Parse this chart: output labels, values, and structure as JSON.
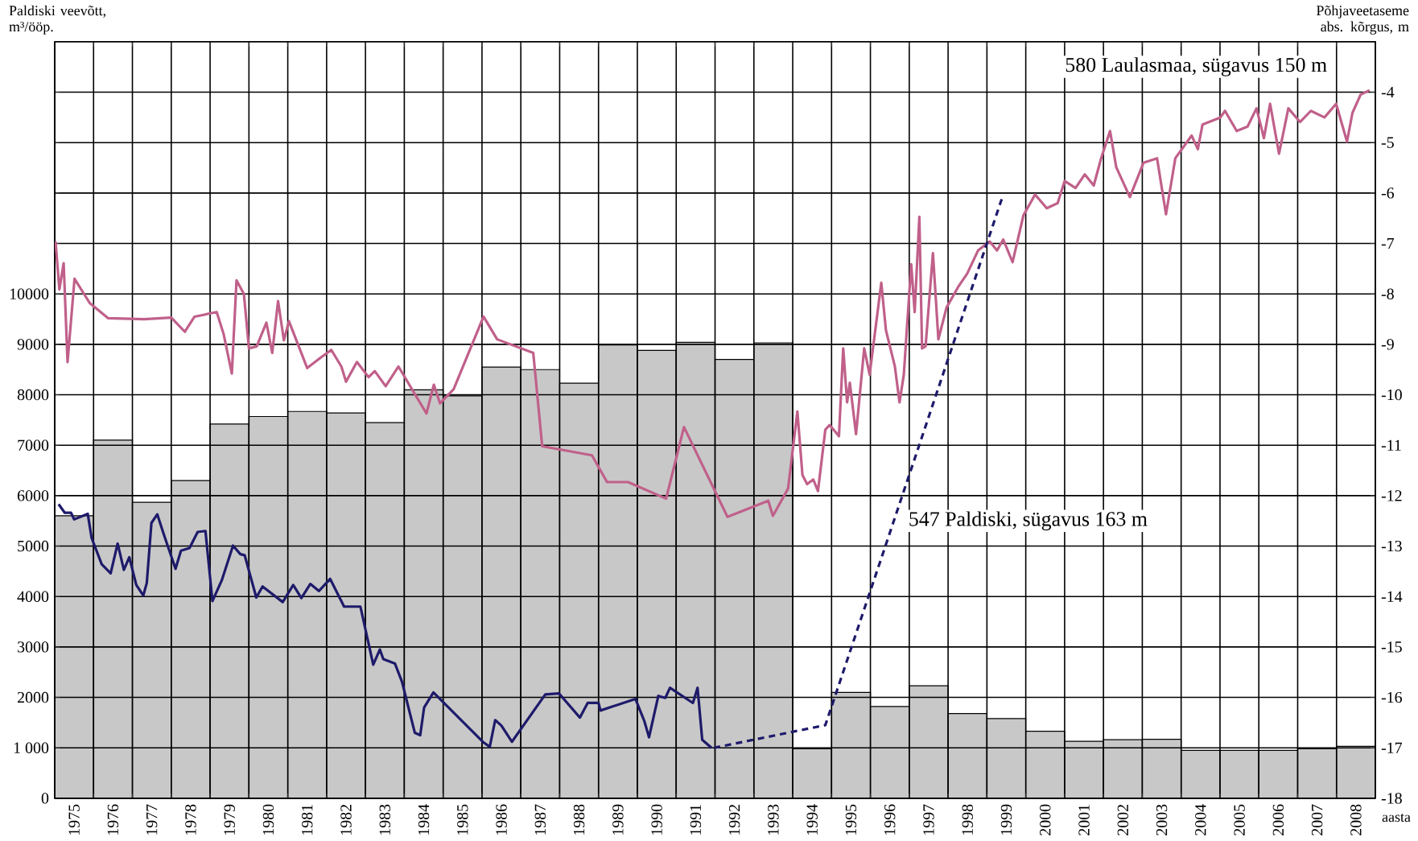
{
  "chart_data": {
    "type": "bar",
    "ylabel": "Paldiski veevõtt, m³/ööp.",
    "y2label": "Põhjaveetaseme abs. kõrgus, m",
    "xlabel": "aasta",
    "annotations": [
      "580  Laulasmaa, sügavus 150 m",
      "547  Paldiski, sügavus 163 m"
    ],
    "xlim": [
      1975,
      2009
    ],
    "xticks": [
      {
        "value": 1975,
        "label": null
      },
      {
        "value": 1976,
        "label": null
      },
      {
        "value": 1977,
        "label": null
      },
      {
        "value": 1978,
        "label": null
      },
      {
        "value": 1979,
        "label": null
      },
      {
        "value": 1980,
        "label": null
      },
      {
        "value": 1981,
        "label": null
      },
      {
        "value": 1982,
        "label": null
      },
      {
        "value": 1983,
        "label": null
      },
      {
        "value": 1984,
        "label": null
      },
      {
        "value": 1985,
        "label": null
      },
      {
        "value": 1986,
        "label": null
      },
      {
        "value": 1987,
        "label": null
      },
      {
        "value": 1988,
        "label": null
      },
      {
        "value": 1989,
        "label": null
      },
      {
        "value": 1990,
        "label": null
      },
      {
        "value": 1991,
        "label": null
      },
      {
        "value": 1992,
        "label": null
      },
      {
        "value": 1993,
        "label": null
      },
      {
        "value": 1994,
        "label": null
      },
      {
        "value": 1995,
        "label": null
      },
      {
        "value": 1996,
        "label": null
      },
      {
        "value": 1997,
        "label": null
      },
      {
        "value": 1998,
        "label": null
      },
      {
        "value": 1999,
        "label": null
      },
      {
        "value": 2000,
        "label": null
      },
      {
        "value": 2001,
        "label": null
      },
      {
        "value": 2002,
        "label": null
      },
      {
        "value": 2003,
        "label": null
      },
      {
        "value": 2004,
        "label": null
      },
      {
        "value": 2005,
        "label": null
      },
      {
        "value": 2006,
        "label": null
      },
      {
        "value": 2007,
        "label": null
      },
      {
        "value": 2008,
        "label": null
      },
      {
        "value": 2009,
        "label": null
      },
      {
        "value": 1975.5,
        "label": "1975"
      },
      {
        "value": 1976.5,
        "label": "1976"
      },
      {
        "value": 1977.5,
        "label": "1977"
      },
      {
        "value": 1978.5,
        "label": "1978"
      },
      {
        "value": 1979.5,
        "label": "1979"
      },
      {
        "value": 1980.5,
        "label": "1980"
      },
      {
        "value": 1981.5,
        "label": "1981"
      },
      {
        "value": 1982.5,
        "label": "1982"
      },
      {
        "value": 1983.5,
        "label": "1983"
      },
      {
        "value": 1984.5,
        "label": "1984"
      },
      {
        "value": 1985.5,
        "label": "1985"
      },
      {
        "value": 1986.5,
        "label": "1986"
      },
      {
        "value": 1987.5,
        "label": "1987"
      },
      {
        "value": 1988.5,
        "label": "1988"
      },
      {
        "value": 1989.5,
        "label": "1989"
      },
      {
        "value": 1990.5,
        "label": "1990"
      },
      {
        "value": 1991.5,
        "label": "1991"
      },
      {
        "value": 1992.5,
        "label": "1992"
      },
      {
        "value": 1993.5,
        "label": "1993"
      },
      {
        "value": 1994.5,
        "label": "1994"
      },
      {
        "value": 1995.5,
        "label": "1995"
      },
      {
        "value": 1996.5,
        "label": "1996"
      },
      {
        "value": 1997.5,
        "label": "1997"
      },
      {
        "value": 1998.5,
        "label": "1998"
      },
      {
        "value": 1999.5,
        "label": "1999"
      },
      {
        "value": 2000.5,
        "label": "2000"
      },
      {
        "value": 2001.5,
        "label": "2001"
      },
      {
        "value": 2002.5,
        "label": "2002"
      },
      {
        "value": 2003.5,
        "label": "2003"
      },
      {
        "value": 2004.5,
        "label": "2004"
      },
      {
        "value": 2005.5,
        "label": "2005"
      },
      {
        "value": 2006.5,
        "label": "2006"
      },
      {
        "value": 2007.5,
        "label": "2007"
      },
      {
        "value": 2008.5,
        "label": "2008"
      }
    ],
    "ylim": [
      0,
      15000
    ],
    "yticks": [
      0,
      {
        "value": 1000,
        "label": "1 000"
      },
      2000,
      3000,
      4000,
      5000,
      6000,
      7000,
      8000,
      9000,
      10000
    ],
    "y2lim": [
      -18,
      -3
    ],
    "y2ticks": [
      -18,
      -17,
      -16,
      -15,
      -14,
      -13,
      -12,
      -11,
      -10,
      -9,
      -8,
      -7,
      -6,
      -5,
      -4
    ],
    "grid": true,
    "series": [
      {
        "color": "#c8c8c8",
        "x": [
          1975.5,
          1976.5,
          1977.5,
          1978.5,
          1979.5,
          1980.5,
          1981.5,
          1982.5,
          1983.5,
          1984.5,
          1985.5,
          1986.5,
          1987.5,
          1988.5,
          1989.5,
          1990.5,
          1991.5,
          1992.5,
          1993.5,
          1994.5,
          1995.5,
          1996.5,
          1997.5,
          1998.5,
          1999.5,
          2000.5,
          2001.5,
          2002.5,
          2003.5,
          2004.5,
          2005.5,
          2006.5,
          2007.5,
          2008.5
        ],
        "values": [
          5600,
          7100,
          5870,
          6300,
          7420,
          7570,
          7670,
          7640,
          7450,
          8100,
          7980,
          8550,
          8500,
          8230,
          8990,
          8880,
          9040,
          8700,
          9030,
          980,
          2100,
          1820,
          2230,
          1680,
          1580,
          1330,
          1130,
          1160,
          1170,
          950,
          950,
          950,
          980,
          1030
        ]
      },
      {
        "type": "line",
        "axis": "y2",
        "color": "#c0608a",
        "x": [
          1975.02,
          1975.12,
          1975.23,
          1975.33,
          1975.51,
          1975.9,
          1976.37,
          1977.3,
          1978.0,
          1978.35,
          1978.6,
          1979.17,
          1979.35,
          1979.56,
          1979.68,
          1979.87,
          1980.0,
          1980.2,
          1980.45,
          1980.6,
          1980.75,
          1980.9,
          1981.03,
          1981.5,
          1981.85,
          1982.12,
          1982.38,
          1982.5,
          1982.78,
          1983.08,
          1983.24,
          1983.52,
          1983.85,
          1984.57,
          1984.76,
          1984.92,
          1985.27,
          1986.04,
          1986.39,
          1987.32,
          1987.55,
          1988.83,
          1989.22,
          1989.76,
          1990.74,
          1991.2,
          1992.32,
          1993.37,
          1993.49,
          1993.88,
          1994.12,
          1994.25,
          1994.37,
          1994.53,
          1994.65,
          1994.84,
          1994.95,
          1995.05,
          1995.19,
          1995.3,
          1995.4,
          1995.47,
          1995.63,
          1995.84,
          1995.98,
          1996.28,
          1996.4,
          1996.63,
          1996.75,
          1996.86,
          1997.05,
          1997.14,
          1997.26,
          1997.33,
          1997.42,
          1997.61,
          1997.75,
          1997.96,
          1998.26,
          1998.49,
          1998.77,
          1999.07,
          1999.26,
          1999.42,
          1999.66,
          1999.94,
          2000.24,
          2000.54,
          2000.82,
          2001.0,
          2001.28,
          2001.52,
          2001.75,
          2001.94,
          2002.17,
          2002.33,
          2002.68,
          2003.03,
          2003.38,
          2003.61,
          2003.85,
          2004.27,
          2004.43,
          2004.55,
          2005.01,
          2005.13,
          2005.43,
          2005.71,
          2005.94,
          2006.13,
          2006.29,
          2006.52,
          2006.76,
          2007.06,
          2007.34,
          2007.69,
          2007.99,
          2008.27,
          2008.41,
          2008.62,
          2008.85
        ],
        "values": [
          -6.96,
          -7.91,
          -7.39,
          -9.35,
          -7.7,
          -8.18,
          -8.48,
          -8.5,
          -8.47,
          -8.75,
          -8.45,
          -8.36,
          -8.8,
          -9.58,
          -7.73,
          -8.0,
          -9.08,
          -9.04,
          -8.57,
          -9.17,
          -8.14,
          -8.92,
          -8.54,
          -9.47,
          -9.26,
          -9.11,
          -9.44,
          -9.74,
          -9.35,
          -9.65,
          -9.53,
          -9.83,
          -9.44,
          -10.37,
          -9.8,
          -10.17,
          -9.89,
          -8.45,
          -8.9,
          -9.17,
          -11.02,
          -11.2,
          -11.73,
          -11.73,
          -12.06,
          -10.64,
          -12.42,
          -12.1,
          -12.4,
          -11.86,
          -10.33,
          -11.59,
          -11.77,
          -11.68,
          -11.91,
          -10.69,
          -10.6,
          -10.69,
          -10.82,
          -9.08,
          -10.15,
          -9.76,
          -10.78,
          -9.08,
          -9.6,
          -7.78,
          -8.72,
          -9.44,
          -10.15,
          -9.6,
          -7.41,
          -8.36,
          -6.47,
          -9.08,
          -9.04,
          -7.19,
          -8.9,
          -8.27,
          -7.86,
          -7.6,
          -7.14,
          -6.96,
          -7.14,
          -6.92,
          -7.37,
          -6.44,
          -6.03,
          -6.3,
          -6.2,
          -5.76,
          -5.9,
          -5.63,
          -5.85,
          -5.31,
          -4.77,
          -5.49,
          -6.08,
          -5.4,
          -5.31,
          -6.42,
          -5.31,
          -4.86,
          -5.13,
          -4.64,
          -4.5,
          -4.37,
          -4.77,
          -4.68,
          -4.32,
          -4.91,
          -4.23,
          -5.22,
          -4.32,
          -4.59,
          -4.37,
          -4.5,
          -4.23,
          -4.98,
          -4.41,
          -4.05,
          -3.96
        ]
      },
      {
        "type": "line",
        "axis": "y2",
        "color": "#1e1a6a",
        "x": [
          1975.1,
          1975.26,
          1975.42,
          1975.5,
          1975.85,
          1975.95,
          1976.21,
          1976.44,
          1976.62,
          1976.78,
          1976.92,
          1977.1,
          1977.28,
          1977.37,
          1977.49,
          1977.64,
          1977.81,
          1978.11,
          1978.25,
          1978.47,
          1978.68,
          1978.88,
          1979.06,
          1979.3,
          1979.59,
          1979.78,
          1979.89,
          1980.19,
          1980.35,
          1980.87,
          1981.14,
          1981.35,
          1981.58,
          1981.8,
          1982.09,
          1982.45,
          1982.87,
          1983.2,
          1983.37,
          1983.46,
          1983.76,
          1983.94,
          1984.27,
          1984.41,
          1984.51,
          1984.75,
          1986.02,
          1986.2,
          1986.34,
          1986.5,
          1986.77,
          1987.63,
          1987.98,
          1988.52,
          1988.72,
          1989.0,
          1989.05,
          1989.95,
          1990.18,
          1990.3,
          1990.54,
          1990.72,
          1990.84,
          1991.43,
          1991.55,
          1991.67,
          1991.91
        ],
        "values": [
          -12.17,
          -12.34,
          -12.34,
          -12.47,
          -12.36,
          -12.84,
          -13.36,
          -13.54,
          -12.95,
          -13.47,
          -13.22,
          -13.77,
          -13.98,
          -13.73,
          -12.54,
          -12.37,
          -12.77,
          -13.45,
          -13.09,
          -13.04,
          -12.72,
          -12.7,
          -14.09,
          -13.68,
          -12.99,
          -13.16,
          -13.18,
          -14.02,
          -13.8,
          -14.11,
          -13.77,
          -14.03,
          -13.75,
          -13.89,
          -13.65,
          -14.2,
          -14.2,
          -15.35,
          -15.05,
          -15.24,
          -15.33,
          -15.69,
          -16.7,
          -16.75,
          -16.2,
          -15.9,
          -16.88,
          -16.98,
          -16.45,
          -16.56,
          -16.88,
          -15.94,
          -15.92,
          -16.4,
          -16.11,
          -16.11,
          -16.26,
          -16.03,
          -16.47,
          -16.79,
          -15.97,
          -16.01,
          -15.81,
          -16.11,
          -15.81,
          -16.84,
          -17.0
        ]
      },
      {
        "type": "line",
        "axis": "y2",
        "color": "#1e1a6a",
        "line_style": "dashed",
        "x": [
          1991.97,
          1994.84,
          1999.38
        ],
        "values": [
          -17.0,
          -16.55,
          -6.12
        ]
      }
    ]
  }
}
